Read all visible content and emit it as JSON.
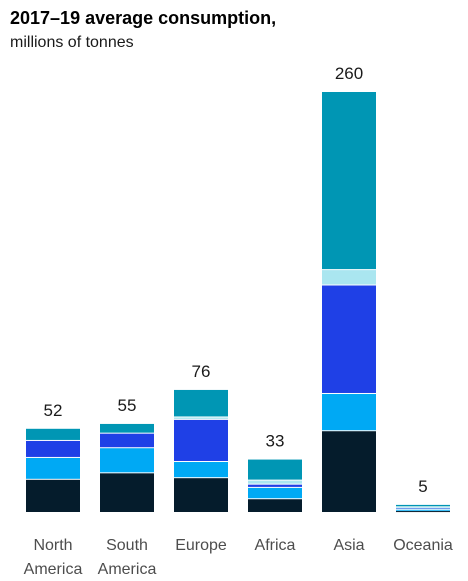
{
  "chart_data": {
    "type": "bar",
    "stacked": true,
    "title": "2017–19 average consumption,",
    "subtitle": "millions of tonnes",
    "categories": [
      "North America",
      "South America",
      "Europe",
      "Africa",
      "Asia",
      "Oceania"
    ],
    "category_lines": [
      [
        "North",
        "America"
      ],
      [
        "South",
        "America"
      ],
      [
        "Europe"
      ],
      [
        "Africa"
      ],
      [
        "Asia"
      ],
      [
        "Oceania"
      ]
    ],
    "totals": [
      52,
      55,
      76,
      33,
      260,
      5
    ],
    "series": [
      {
        "color": "#051c2c",
        "values": [
          20.5,
          24.5,
          21.5,
          8.5,
          50.5,
          1.2
        ]
      },
      {
        "color": "#00a9f4",
        "values": [
          13.5,
          15.5,
          10,
          7,
          23,
          0.8
        ]
      },
      {
        "color": "#1f40e6",
        "values": [
          10.5,
          9,
          26,
          2,
          67,
          1.2
        ]
      },
      {
        "color": "#aae6f0",
        "values": [
          0,
          0,
          1.5,
          2.5,
          9.5,
          0.3
        ]
      },
      {
        "color": "#0096b4",
        "values": [
          7.5,
          6,
          17,
          13,
          110,
          1.5
        ]
      }
    ],
    "ylim": [
      0,
      260
    ]
  }
}
